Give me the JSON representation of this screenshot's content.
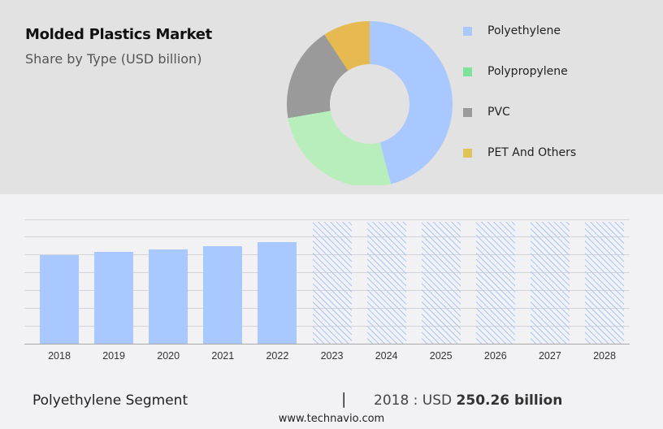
{
  "header": {
    "title": "Molded Plastics Market",
    "subtitle": "Share by Type (USD billion)"
  },
  "legend": [
    {
      "label": "Polyethylene",
      "color": "#a8c8ff"
    },
    {
      "label": "Polypropylene",
      "color": "#7de39a"
    },
    {
      "label": "PVC",
      "color": "#9a9a9a"
    },
    {
      "label": "PET And Others",
      "color": "#e0c45a"
    }
  ],
  "footer": {
    "segment": "Polyethylene Segment",
    "separator": "|",
    "year_prefix": "2018 : USD ",
    "value": "250.26 billion",
    "site": "www.technavio.com"
  },
  "chart_data": [
    {
      "type": "pie",
      "title": "Molded Plastics Market",
      "subtitle": "Share by Type (USD billion)",
      "donut": true,
      "categories": [
        "Polyethylene",
        "Polypropylene",
        "PVC",
        "PET And Others"
      ],
      "values": [
        45.8,
        26.4,
        18.5,
        9.2
      ],
      "colors": [
        "#a8c8ff",
        "#b8eebb",
        "#9a9a9a",
        "#e6ba50"
      ],
      "legend_position": "right"
    },
    {
      "type": "bar",
      "title": "Polyethylene Segment",
      "categories": [
        "2018",
        "2019",
        "2020",
        "2021",
        "2022",
        "2023",
        "2024",
        "2025",
        "2026",
        "2027",
        "2028"
      ],
      "values": [
        250.26,
        259.4,
        265.1,
        274.3,
        285.7,
        null,
        null,
        null,
        null,
        null,
        null
      ],
      "forecast_years": [
        "2023",
        "2024",
        "2025",
        "2026",
        "2027",
        "2028"
      ],
      "forecast_style": "hatched placeholder",
      "ylabel": "USD billion",
      "xlabel": "",
      "grid": true,
      "annotation": "2018 : USD 250.26 billion"
    }
  ]
}
